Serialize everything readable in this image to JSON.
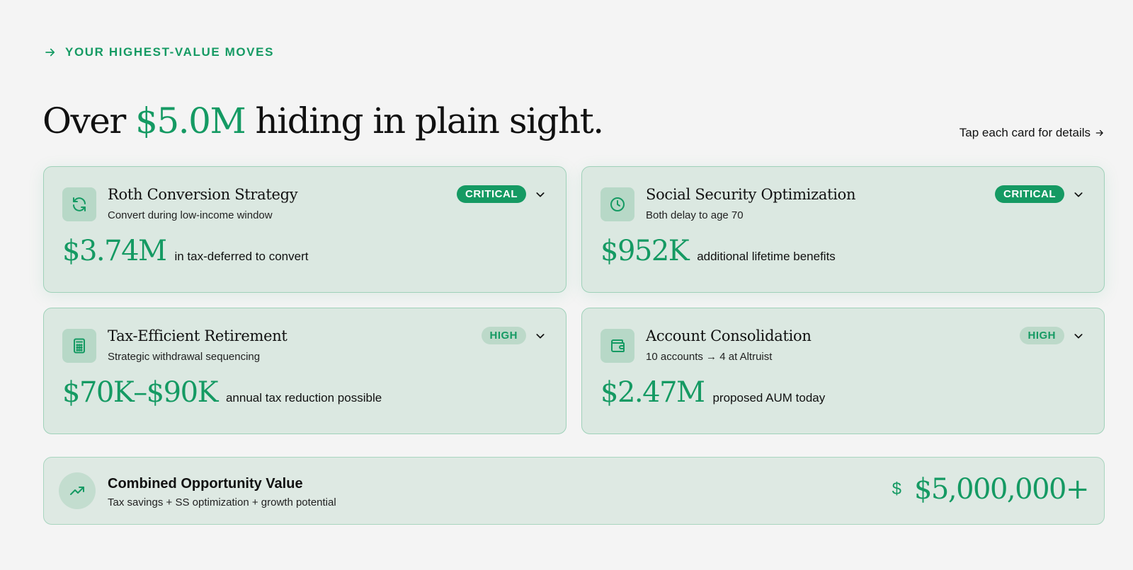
{
  "eyebrow": {
    "label": "YOUR HIGHEST-VALUE MOVES",
    "icon": "arrow-right-icon"
  },
  "headline": {
    "prefix": "Over ",
    "accent": "$5.0M",
    "suffix": " hiding in plain sight."
  },
  "tap_hint": {
    "label": "Tap each card for details",
    "icon": "arrow-right-icon"
  },
  "colors": {
    "accent": "#159a63",
    "card_bg": "#dbe8e1",
    "card_border": "#9fd1b9",
    "page_bg": "#f4f4f4"
  },
  "cards": [
    {
      "title": "Roth Conversion Strategy",
      "subtitle": "Convert during low-income window",
      "badge": "CRITICAL",
      "priority": "critical",
      "value": "$3.74M",
      "value_label": "in tax-deferred to convert",
      "icon": "refresh-icon"
    },
    {
      "title": "Social Security Optimization",
      "subtitle": "Both delay to age 70",
      "badge": "CRITICAL",
      "priority": "critical",
      "value": "$952K",
      "value_label": "additional lifetime benefits",
      "icon": "clock-icon"
    },
    {
      "title": "Tax-Efficient Retirement",
      "subtitle": "Strategic withdrawal sequencing",
      "badge": "HIGH",
      "priority": "high",
      "value": "$70K–$90K",
      "value_label": "annual tax reduction possible",
      "icon": "calculator-icon"
    },
    {
      "title": "Account Consolidation",
      "subtitle": "10 accounts → 4 at Altruist",
      "badge": "HIGH",
      "priority": "high",
      "value": "$2.47M",
      "value_label": "proposed AUM today",
      "icon": "wallet-icon"
    }
  ],
  "summary": {
    "title": "Combined Opportunity Value",
    "subtitle": "Tax savings + SS optimization + growth potential",
    "currency_symbol": "$",
    "value": "$5,000,000+",
    "icon": "trending-up-icon"
  }
}
